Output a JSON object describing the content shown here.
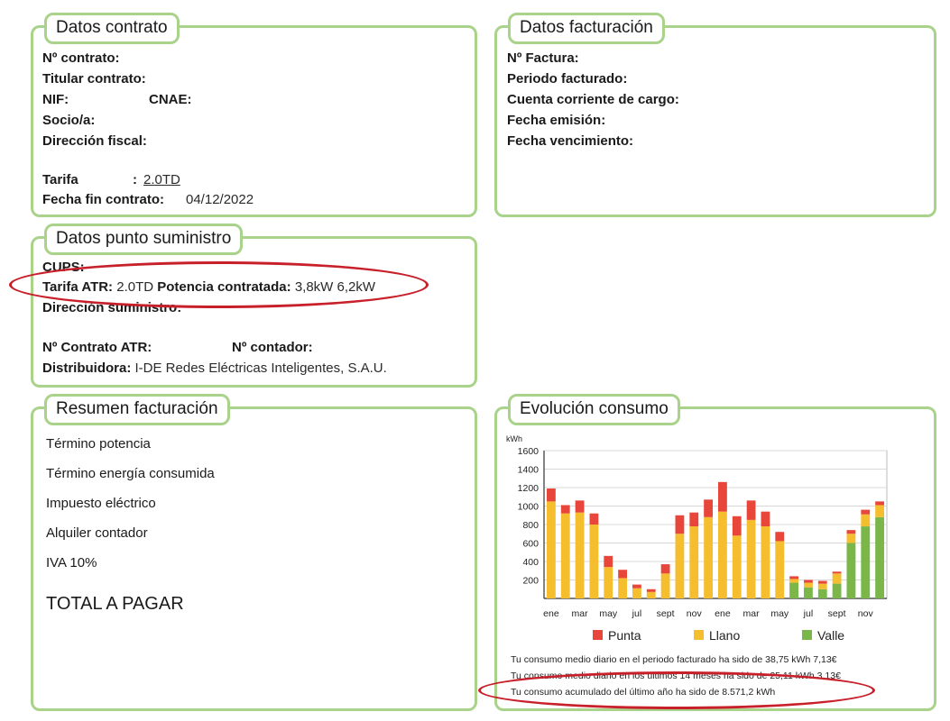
{
  "contrato": {
    "title": "Datos contrato",
    "n_contrato": "Nº contrato:",
    "titular": "Titular contrato:",
    "nif": "NIF:",
    "cnae": "CNAE:",
    "socio": "Socio/a:",
    "direccion": "Dirección fiscal:",
    "tarifa_label": "Tarifa",
    "tarifa_sep": ":",
    "tarifa_value": "2.0TD",
    "fecha_fin_label": "Fecha fin contrato:",
    "fecha_fin_value": "04/12/2022"
  },
  "facturacion": {
    "title": "Datos facturación",
    "n_factura": "Nº Factura:",
    "periodo": "Periodo facturado:",
    "cuenta": "Cuenta corriente de cargo:",
    "emision": "Fecha emisión:",
    "vencimiento": "Fecha vencimiento:"
  },
  "suministro": {
    "title": "Datos punto suministro",
    "cups": "CUPS:",
    "tarifa_atr_label": "Tarifa ATR:",
    "tarifa_atr_value": "2.0TD",
    "potencia_label": "Potencia contratada:",
    "potencia_value": "3,8kW 6,2kW",
    "direccion": "Dirección suministro:",
    "contrato_atr": "Nº Contrato ATR:",
    "contador": "Nº contador:",
    "distribuidora_label": "Distribuidora:",
    "distribuidora_value": "I-DE Redes Eléctricas Inteligentes, S.A.U."
  },
  "resumen": {
    "title": "Resumen facturación",
    "items": [
      "Término potencia",
      "Término energía consumida",
      "Impuesto eléctrico",
      "Alquiler contador",
      "IVA 10%"
    ],
    "total": "TOTAL A PAGAR"
  },
  "evolucion": {
    "title": "Evolución consumo",
    "notes": [
      "Tu consumo medio diario en el periodo facturado ha sido de 38,75 kWh 7,13€",
      "Tu consumo medio diario en los últimos 14 meses ha sido de 25,11 kWh 3,13€",
      "Tu consumo acumulado del último año ha sido de 8.571,2 kWh"
    ]
  },
  "colors": {
    "border": "#a9d28a",
    "punta": "#e8463a",
    "llano": "#f5be2e",
    "valle": "#7ab648",
    "highlight": "#c8202a"
  },
  "chart_data": {
    "type": "bar",
    "stacked": true,
    "ylabel": "kWh",
    "ylim": [
      0,
      1600
    ],
    "yticks": [
      200,
      400,
      600,
      800,
      1000,
      1200,
      1400,
      1600
    ],
    "tick_labels": [
      "ene",
      "mar",
      "may",
      "jul",
      "sept",
      "nov",
      "ene",
      "mar",
      "may",
      "jul",
      "sept",
      "nov"
    ],
    "legend": [
      "Punta",
      "Llano",
      "Valle"
    ],
    "legend_position": "bottom",
    "bars": [
      {
        "llano": 1050,
        "valle": 0,
        "punta": 140
      },
      {
        "llano": 920,
        "valle": 0,
        "punta": 90
      },
      {
        "llano": 930,
        "valle": 0,
        "punta": 130
      },
      {
        "llano": 800,
        "valle": 0,
        "punta": 120
      },
      {
        "llano": 340,
        "valle": 0,
        "punta": 120
      },
      {
        "llano": 220,
        "valle": 0,
        "punta": 90
      },
      {
        "llano": 110,
        "valle": 0,
        "punta": 40
      },
      {
        "llano": 70,
        "valle": 0,
        "punta": 30
      },
      {
        "llano": 270,
        "valle": 0,
        "punta": 100
      },
      {
        "llano": 700,
        "valle": 0,
        "punta": 200
      },
      {
        "llano": 780,
        "valle": 0,
        "punta": 150
      },
      {
        "llano": 880,
        "valle": 0,
        "punta": 190
      },
      {
        "llano": 940,
        "valle": 0,
        "punta": 320
      },
      {
        "llano": 680,
        "valle": 0,
        "punta": 210
      },
      {
        "llano": 850,
        "valle": 0,
        "punta": 210
      },
      {
        "llano": 780,
        "valle": 0,
        "punta": 160
      },
      {
        "llano": 620,
        "valle": 0,
        "punta": 100
      },
      {
        "llano": 40,
        "valle": 170,
        "punta": 30
      },
      {
        "llano": 50,
        "valle": 120,
        "punta": 30
      },
      {
        "llano": 60,
        "valle": 100,
        "punta": 30
      },
      {
        "llano": 110,
        "valle": 160,
        "punta": 20
      },
      {
        "llano": 100,
        "valle": 600,
        "punta": 40
      },
      {
        "llano": 130,
        "valle": 780,
        "punta": 50
      },
      {
        "llano": 130,
        "valle": 880,
        "punta": 40
      }
    ]
  }
}
